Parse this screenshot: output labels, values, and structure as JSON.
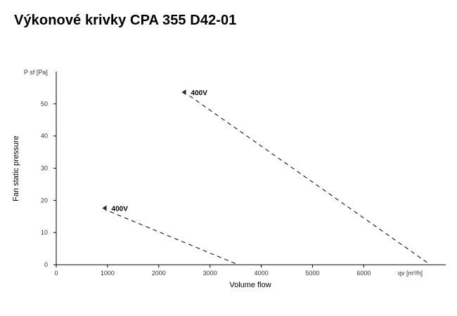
{
  "page": {
    "title": "Výkonové krivky CPA 355 D42-01"
  },
  "chart_data": {
    "type": "line",
    "title": "Výkonové krivky CPA 355 D42-01",
    "xlabel": "Volume flow",
    "ylabel": "Fan static pressure",
    "x_unit": "qv [m³/h]",
    "y_unit": "P sf [Pa]",
    "xlim": [
      0,
      7600
    ],
    "ylim": [
      0,
      60
    ],
    "x_ticks": [
      0,
      1000,
      2000,
      3000,
      4000,
      5000,
      6000
    ],
    "y_ticks": [
      0,
      10,
      20,
      30,
      40,
      50
    ],
    "grid": false,
    "legend": "none",
    "series": [
      {
        "label": "400V",
        "style": "dashed",
        "color": "#000000",
        "x": [
          1050,
          3550
        ],
        "y": [
          16.5,
          0
        ]
      },
      {
        "label": "400V",
        "style": "dashed",
        "color": "#000000",
        "x": [
          2600,
          7300
        ],
        "y": [
          52.5,
          0
        ]
      }
    ]
  }
}
